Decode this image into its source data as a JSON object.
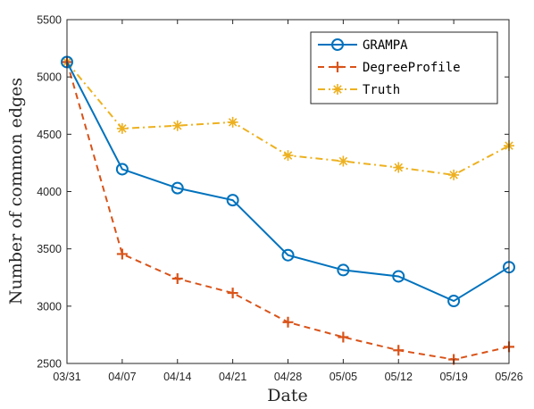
{
  "chart_data": {
    "type": "line",
    "xlabel": "Date",
    "ylabel": "Number of common edges",
    "categories": [
      "03/31",
      "04/07",
      "04/14",
      "04/21",
      "04/28",
      "05/05",
      "05/12",
      "05/19",
      "05/26"
    ],
    "ylim": [
      2500,
      5500
    ],
    "yticks": [
      2500,
      3000,
      3500,
      4000,
      4500,
      5000,
      5500
    ],
    "grid": false,
    "legend_position": "top-right",
    "series": [
      {
        "name": "GRAMPA",
        "color": "#0072BD",
        "marker": "circle",
        "line_style": "solid",
        "values": [
          5130,
          4195,
          4030,
          3925,
          3445,
          3315,
          3260,
          3045,
          3340
        ]
      },
      {
        "name": "DegreeProfile",
        "color": "#D95319",
        "marker": "plus",
        "line_style": "dashed",
        "values": [
          5130,
          3455,
          3240,
          3115,
          2860,
          2730,
          2615,
          2535,
          2645
        ]
      },
      {
        "name": "Truth",
        "color": "#EDB120",
        "marker": "asterisk",
        "line_style": "dashdot",
        "values": [
          5130,
          4550,
          4575,
          4605,
          4315,
          4265,
          4210,
          4145,
          4400
        ]
      }
    ]
  }
}
